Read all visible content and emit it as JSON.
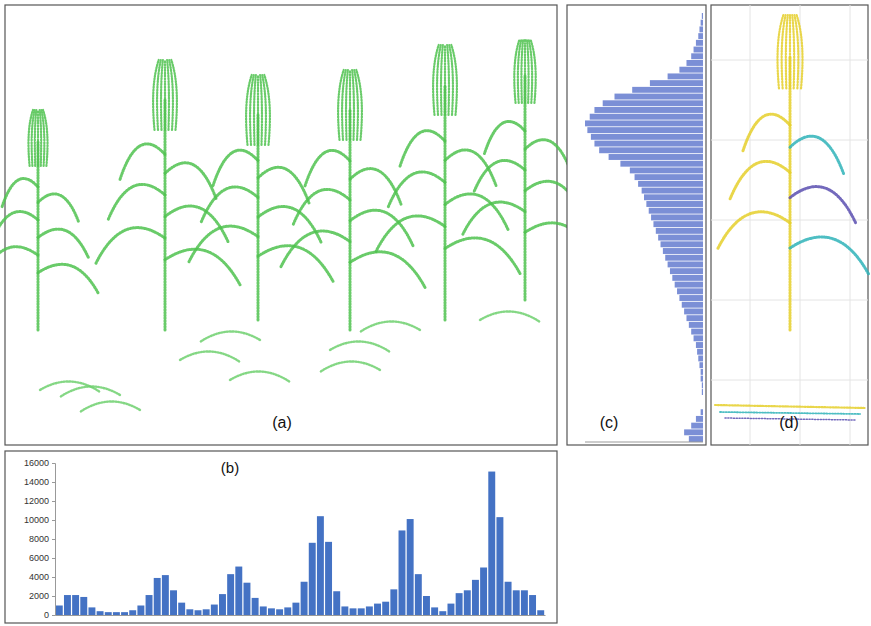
{
  "panels": {
    "a": {
      "label": "(a)"
    },
    "d": {
      "label": "(d)"
    }
  },
  "chart_data": [
    {
      "type": "bar",
      "title": "(b)",
      "color": "#4472c4",
      "values": [
        1000,
        2100,
        2100,
        1900,
        800,
        400,
        300,
        300,
        300,
        500,
        1000,
        2100,
        3900,
        4200,
        2600,
        1300,
        600,
        500,
        600,
        1100,
        2200,
        4300,
        5100,
        3400,
        1800,
        900,
        700,
        600,
        800,
        1300,
        3500,
        7600,
        10400,
        7700,
        2500,
        900,
        700,
        700,
        900,
        1200,
        1400,
        2700,
        8900,
        10100,
        4300,
        2000,
        800,
        400,
        1200,
        2300,
        2600,
        3700,
        5000,
        15100,
        10300,
        3500,
        2600,
        2600,
        2100,
        500
      ],
      "ylim": [
        0,
        16000
      ],
      "yticks": [
        0,
        2000,
        4000,
        6000,
        8000,
        10000,
        12000,
        14000,
        16000
      ],
      "grid": false,
      "tick_labels": "y"
    },
    {
      "type": "bar",
      "title": "(c)",
      "orientation": "horizontal",
      "color": "#7b8fd6",
      "values": [
        1,
        2,
        3,
        4,
        6,
        8,
        10,
        14,
        20,
        30,
        45,
        60,
        75,
        85,
        92,
        96,
        100,
        98,
        95,
        92,
        88,
        80,
        70,
        62,
        58,
        55,
        52,
        50,
        48,
        46,
        44,
        42,
        40,
        38,
        36,
        34,
        32,
        30,
        28,
        26,
        24,
        22,
        20,
        18,
        16,
        14,
        12,
        10,
        8,
        6,
        5,
        4,
        3,
        2,
        2,
        1,
        1,
        0,
        0,
        2,
        6,
        10,
        16,
        12
      ],
      "xlim": [
        0,
        100
      ],
      "grid": false,
      "tick_labels": false
    }
  ]
}
